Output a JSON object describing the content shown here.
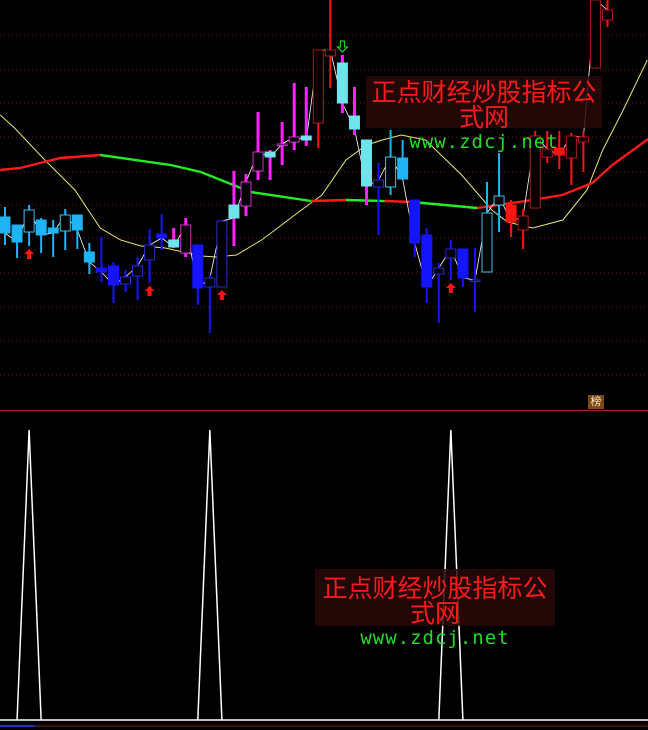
{
  "watermark": {
    "cn": "正点财经炒股指标公式网",
    "en": "www.zdcj.net"
  },
  "badge": {
    "label": "榜"
  },
  "colors": {
    "background": "#000000",
    "grid": "#6a1420",
    "separator": "#a0203a",
    "light_blue": "#1fb4f4",
    "blue": "#1414ff",
    "magenta": "#ff22ff",
    "cyan_body": "#70e4ec",
    "red": "#ff1414",
    "dark_red": "#b01818",
    "ma_yellow": "#e8e870",
    "ma_up": "#ff1a1a",
    "ma_down": "#22ee22",
    "close_line": "#ffffff",
    "signal": "#ffffff"
  },
  "chart_data": {
    "type": "candlestick",
    "grid": true,
    "candles": [
      {
        "h": 20.3,
        "l": 16.5,
        "o": 19.3,
        "c": 17.7,
        "s": "lb"
      },
      {
        "h": 18.5,
        "l": 15.2,
        "o": 18.5,
        "c": 16.8,
        "s": "lb"
      },
      {
        "h": 20.5,
        "l": 16.4,
        "o": 17.8,
        "c": 20.0,
        "s": "lb"
      },
      {
        "h": 19.2,
        "l": 15.7,
        "o": 19.0,
        "c": 17.5,
        "s": "lb"
      },
      {
        "h": 19.0,
        "l": 15.3,
        "o": 18.2,
        "c": 17.7,
        "s": "lb"
      },
      {
        "h": 20.1,
        "l": 16.0,
        "o": 17.9,
        "c": 19.5,
        "s": "lb"
      },
      {
        "h": 19.5,
        "l": 16.1,
        "o": 19.5,
        "c": 18.0,
        "s": "lb"
      },
      {
        "h": 16.7,
        "l": 13.6,
        "o": 15.8,
        "c": 14.8,
        "s": "lb"
      },
      {
        "h": 17.3,
        "l": 12.8,
        "o": 14.2,
        "c": 13.8,
        "s": "b"
      },
      {
        "h": 14.8,
        "l": 10.7,
        "o": 14.4,
        "c": 12.5,
        "s": "b"
      },
      {
        "h": 14.0,
        "l": 11.8,
        "o": 12.6,
        "c": 13.3,
        "s": "b"
      },
      {
        "h": 15.3,
        "l": 11.0,
        "o": 13.4,
        "c": 14.4,
        "s": "b"
      },
      {
        "h": 18.1,
        "l": 12.7,
        "o": 15.0,
        "c": 16.5,
        "s": "b"
      },
      {
        "h": 19.6,
        "l": 16.0,
        "o": 17.6,
        "c": 17.2,
        "s": "b"
      },
      {
        "h": 18.2,
        "l": 16.2,
        "o": 17.0,
        "c": 16.3,
        "s": "mc"
      },
      {
        "h": 19.2,
        "l": 15.3,
        "o": 15.7,
        "c": 18.5,
        "s": "m"
      },
      {
        "h": 16.5,
        "l": 10.5,
        "o": 16.5,
        "c": 12.2,
        "s": "b"
      },
      {
        "h": 13.5,
        "l": 7.7,
        "o": 12.3,
        "c": 13.2,
        "s": "b"
      },
      {
        "h": 18.9,
        "l": 12.3,
        "o": 12.3,
        "c": 18.9,
        "s": "b"
      },
      {
        "h": 23.9,
        "l": 16.4,
        "o": 20.5,
        "c": 19.2,
        "s": "mc"
      },
      {
        "h": 23.6,
        "l": 19.4,
        "o": 20.4,
        "c": 22.8,
        "s": "m"
      },
      {
        "h": 29.8,
        "l": 23.0,
        "o": 23.9,
        "c": 25.8,
        "s": "m"
      },
      {
        "h": 26.0,
        "l": 23.0,
        "o": 25.8,
        "c": 25.3,
        "s": "mc"
      },
      {
        "h": 28.8,
        "l": 24.5,
        "o": 26.6,
        "c": 26.6,
        "s": "m"
      },
      {
        "h": 32.7,
        "l": 26.0,
        "o": 26.8,
        "c": 27.3,
        "s": "m"
      },
      {
        "h": 32.3,
        "l": 26.4,
        "o": 27.4,
        "c": 27.0,
        "s": "mc"
      },
      {
        "h": 36.0,
        "l": 26.2,
        "o": 28.7,
        "c": 36.0,
        "s": "r"
      },
      {
        "h": 41.0,
        "l": 32.2,
        "o": 35.4,
        "c": 36.0,
        "s": "r"
      },
      {
        "h": 35.5,
        "l": 29.7,
        "o": 34.7,
        "c": 30.7,
        "s": "mc"
      },
      {
        "h": 32.3,
        "l": 27.5,
        "o": 29.4,
        "c": 28.1,
        "s": "mc"
      },
      {
        "h": 27.0,
        "l": 20.5,
        "o": 27.0,
        "c": 22.4,
        "s": "mc"
      },
      {
        "h": 24.7,
        "l": 17.5,
        "o": 22.3,
        "c": 23.0,
        "s": "b"
      },
      {
        "h": 28.0,
        "l": 21.5,
        "o": 22.3,
        "c": 25.3,
        "s": "lb"
      },
      {
        "h": 27.0,
        "l": 23.0,
        "o": 25.2,
        "c": 23.1,
        "s": "lb"
      },
      {
        "h": 21.0,
        "l": 15.3,
        "o": 21.0,
        "c": 16.7,
        "s": "b"
      },
      {
        "h": 18.2,
        "l": 10.7,
        "o": 17.5,
        "c": 12.3,
        "s": "b"
      },
      {
        "h": 14.7,
        "l": 8.7,
        "o": 13.6,
        "c": 14.2,
        "s": "b"
      },
      {
        "h": 17.0,
        "l": 13.0,
        "o": 15.2,
        "c": 16.1,
        "s": "b"
      },
      {
        "h": 16.1,
        "l": 12.3,
        "o": 16.1,
        "c": 13.2,
        "s": "b"
      },
      {
        "h": 16.2,
        "l": 9.8,
        "o": 13.0,
        "c": 13.0,
        "s": "b"
      },
      {
        "h": 22.8,
        "l": 13.8,
        "o": 13.8,
        "c": 19.7,
        "s": "lb"
      },
      {
        "h": 25.7,
        "l": 17.8,
        "o": 20.5,
        "c": 21.4,
        "s": "lb"
      },
      {
        "h": 21.0,
        "l": 17.3,
        "o": 20.5,
        "c": 18.8,
        "s": "r"
      },
      {
        "h": 20.1,
        "l": 16.1,
        "o": 18.0,
        "c": 19.4,
        "s": "r"
      },
      {
        "h": 27.9,
        "l": 20.2,
        "o": 20.2,
        "c": 27.4,
        "s": "r"
      },
      {
        "h": 27.9,
        "l": 24.7,
        "o": 25.3,
        "c": 26.1,
        "s": "r"
      },
      {
        "h": 27.9,
        "l": 24.1,
        "o": 26.2,
        "c": 25.5,
        "s": "r"
      },
      {
        "h": 27.7,
        "l": 22.5,
        "o": 25.2,
        "c": 27.4,
        "s": "r"
      },
      {
        "h": 27.9,
        "l": 23.8,
        "o": 26.8,
        "c": 27.3,
        "s": "r"
      },
      {
        "h": 41.0,
        "l": 34.2,
        "o": 34.2,
        "c": 41.0,
        "s": "r"
      },
      {
        "h": 41.0,
        "l": 38.3,
        "o": 39.0,
        "c": 40.0,
        "s": "r"
      }
    ],
    "buy_arrows": [
      2,
      12,
      18,
      37
    ],
    "sell_arrows": [
      28
    ],
    "ma_thin": [
      [
        -0.4,
        29.5
      ],
      [
        0.8,
        28.2
      ],
      [
        3.3,
        25
      ],
      [
        5.8,
        22
      ],
      [
        7.9,
        18.2
      ],
      [
        9.6,
        17
      ],
      [
        11.3,
        16.4
      ],
      [
        13.3,
        16.2
      ],
      [
        16.3,
        15.4
      ],
      [
        17.5,
        15.3
      ],
      [
        19.2,
        15.5
      ],
      [
        21.3,
        17
      ],
      [
        24.6,
        20
      ],
      [
        26.3,
        21.5
      ],
      [
        28.3,
        25
      ],
      [
        30,
        26.5
      ],
      [
        31.3,
        27
      ],
      [
        32.9,
        27.5
      ],
      [
        34.9,
        27
      ],
      [
        37.9,
        23.5
      ],
      [
        40.4,
        20
      ],
      [
        41.7,
        18.8
      ],
      [
        43.8,
        18.2
      ],
      [
        46.3,
        19
      ],
      [
        48.3,
        22
      ],
      [
        49.6,
        26
      ],
      [
        51.3,
        30
      ],
      [
        53.3,
        35
      ]
    ],
    "ma_thick": [
      {
        "trend": "up",
        "points": [
          [
            -0.4,
            24
          ],
          [
            1.25,
            24.2
          ],
          [
            4.6,
            25.2
          ],
          [
            7.9,
            25.5
          ]
        ]
      },
      {
        "trend": "down",
        "points": [
          [
            7.9,
            25.5
          ],
          [
            13.75,
            24.5
          ],
          [
            16.25,
            23.8
          ],
          [
            20.4,
            21.8
          ],
          [
            25.4,
            20.9
          ]
        ]
      },
      {
        "trend": "up",
        "points": [
          [
            25.4,
            20.9
          ],
          [
            28.3,
            21
          ]
        ]
      },
      {
        "trend": "down",
        "points": [
          [
            28.3,
            21
          ],
          [
            31.5,
            20.9
          ]
        ]
      },
      {
        "trend": "up",
        "points": [
          [
            31.5,
            20.9
          ],
          [
            33.8,
            20.8
          ]
        ]
      },
      {
        "trend": "down",
        "points": [
          [
            33.8,
            20.8
          ],
          [
            39.2,
            20.2
          ]
        ]
      },
      {
        "trend": "up",
        "points": [
          [
            39.2,
            20.2
          ],
          [
            43.75,
            21
          ],
          [
            46.25,
            21.5
          ],
          [
            48.75,
            22.7
          ],
          [
            50.4,
            24.5
          ],
          [
            53.6,
            27.3
          ]
        ]
      }
    ],
    "signal_peaks": [
      2,
      17,
      37
    ]
  }
}
